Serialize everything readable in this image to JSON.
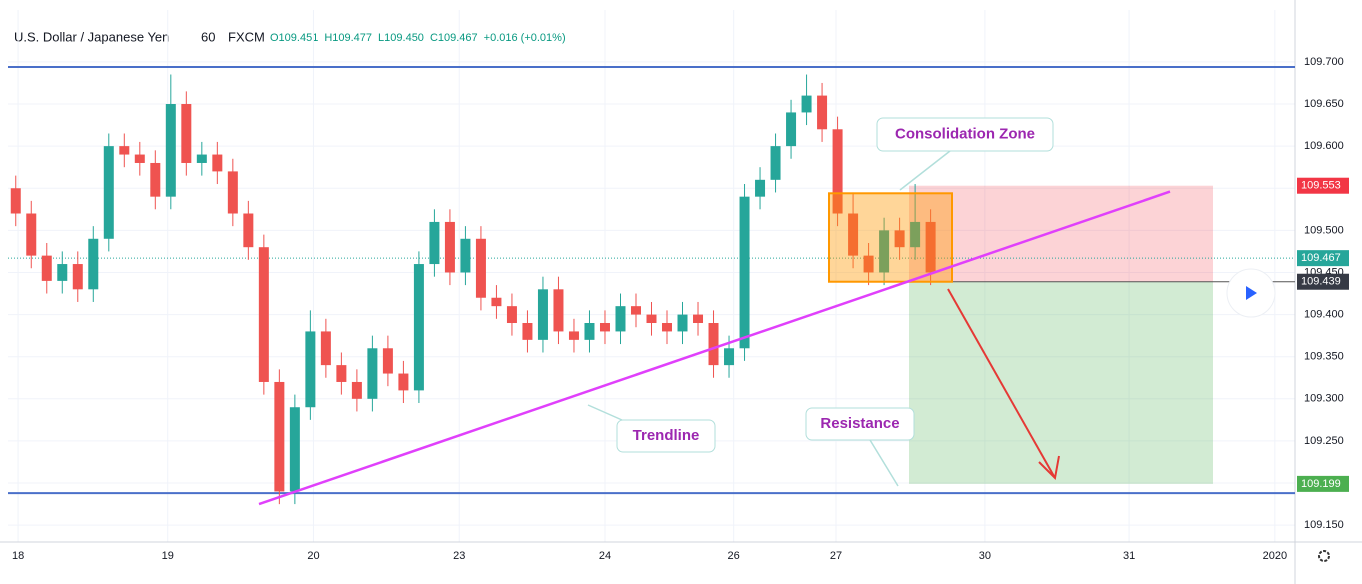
{
  "chart_data": {
    "type": "candlestick",
    "title": "U.S. Dollar / Japanese Yen",
    "interval": "60",
    "source": "FXCM",
    "legend_items": [
      "O109.451",
      "H109.477",
      "L109.450",
      "C109.467",
      "+0.016 (+0.01%)"
    ],
    "up_color": "#26a69a",
    "down_color": "#ef5350",
    "open": [
      109.55,
      109.52,
      109.47,
      109.44,
      109.46,
      109.43,
      109.49,
      109.6,
      109.59,
      109.58,
      109.54,
      109.65,
      109.58,
      109.59,
      109.57,
      109.52,
      109.48,
      109.32,
      109.19,
      109.29,
      109.38,
      109.34,
      109.32,
      109.3,
      109.36,
      109.33,
      109.31,
      109.46,
      109.51,
      109.45,
      109.49,
      109.42,
      109.41,
      109.39,
      109.37,
      109.43,
      109.38,
      109.37,
      109.39,
      109.38,
      109.41,
      109.4,
      109.39,
      109.38,
      109.4,
      109.39,
      109.34,
      109.36,
      109.54,
      109.56,
      109.6,
      109.64,
      109.66,
      109.62,
      109.52,
      109.47,
      109.45,
      109.5,
      109.48,
      109.51
    ],
    "high": [
      109.565,
      109.535,
      109.485,
      109.475,
      109.475,
      109.505,
      109.615,
      109.615,
      109.605,
      109.595,
      109.685,
      109.665,
      109.605,
      109.605,
      109.585,
      109.535,
      109.495,
      109.335,
      109.305,
      109.405,
      109.395,
      109.355,
      109.335,
      109.375,
      109.375,
      109.345,
      109.475,
      109.525,
      109.525,
      109.505,
      109.505,
      109.435,
      109.425,
      109.405,
      109.445,
      109.445,
      109.395,
      109.405,
      109.405,
      109.425,
      109.425,
      109.415,
      109.405,
      109.415,
      109.415,
      109.405,
      109.375,
      109.555,
      109.575,
      109.615,
      109.655,
      109.685,
      109.675,
      109.635,
      109.545,
      109.485,
      109.515,
      109.515,
      109.555,
      109.525
    ],
    "low": [
      109.505,
      109.455,
      109.425,
      109.425,
      109.415,
      109.415,
      109.475,
      109.575,
      109.565,
      109.525,
      109.525,
      109.565,
      109.565,
      109.555,
      109.505,
      109.465,
      109.305,
      109.175,
      109.175,
      109.275,
      109.325,
      109.305,
      109.285,
      109.285,
      109.315,
      109.295,
      109.295,
      109.445,
      109.435,
      109.435,
      109.405,
      109.395,
      109.375,
      109.355,
      109.355,
      109.365,
      109.355,
      109.355,
      109.365,
      109.365,
      109.385,
      109.375,
      109.365,
      109.365,
      109.375,
      109.325,
      109.325,
      109.345,
      109.525,
      109.545,
      109.585,
      109.625,
      109.605,
      109.505,
      109.455,
      109.435,
      109.435,
      109.465,
      109.465,
      109.435
    ],
    "close": [
      109.52,
      109.47,
      109.44,
      109.46,
      109.43,
      109.49,
      109.6,
      109.59,
      109.58,
      109.54,
      109.65,
      109.58,
      109.59,
      109.57,
      109.52,
      109.48,
      109.32,
      109.19,
      109.29,
      109.38,
      109.34,
      109.32,
      109.3,
      109.36,
      109.33,
      109.31,
      109.46,
      109.51,
      109.45,
      109.49,
      109.42,
      109.41,
      109.39,
      109.37,
      109.43,
      109.38,
      109.37,
      109.39,
      109.38,
      109.41,
      109.4,
      109.39,
      109.38,
      109.4,
      109.39,
      109.34,
      109.36,
      109.54,
      109.56,
      109.6,
      109.64,
      109.66,
      109.62,
      109.52,
      109.47,
      109.45,
      109.5,
      109.48,
      109.51,
      109.45
    ],
    "xlim": [
      -0.5,
      82.5
    ],
    "xticks": [
      {
        "value": 0.15,
        "label": "18"
      },
      {
        "value": 9.8,
        "label": "19"
      },
      {
        "value": 19.2,
        "label": "20"
      },
      {
        "value": 28.6,
        "label": "23"
      },
      {
        "value": 38.0,
        "label": "24"
      },
      {
        "value": 46.3,
        "label": "26"
      },
      {
        "value": 52.9,
        "label": "27"
      },
      {
        "value": 62.5,
        "label": "30"
      },
      {
        "value": 71.8,
        "label": "31"
      },
      {
        "value": 81.2,
        "label": "2020"
      }
    ],
    "ylim": [
      109.13,
      109.726
    ],
    "yticks": [
      {
        "value": 109.7,
        "label": "109.700"
      },
      {
        "value": 109.65,
        "label": "109.650"
      },
      {
        "value": 109.6,
        "label": "109.600"
      },
      {
        "value": 109.55,
        "label": "109.550"
      },
      {
        "value": 109.5,
        "label": "109.500"
      },
      {
        "value": 109.45,
        "label": "109.450"
      },
      {
        "value": 109.4,
        "label": "109.400"
      },
      {
        "value": 109.35,
        "label": "109.350"
      },
      {
        "value": 109.3,
        "label": "109.300"
      },
      {
        "value": 109.25,
        "label": "109.250"
      },
      {
        "value": 109.2,
        "label": "109.200"
      },
      {
        "value": 109.15,
        "label": "109.150"
      }
    ],
    "grid": true,
    "horizontal_lines": [
      109.694,
      109.188
    ],
    "current_price": 109.467,
    "price_labels": [
      {
        "value": 109.553,
        "label": "109.553",
        "color": "#f23645"
      },
      {
        "value": 109.467,
        "label": "109.467",
        "color": "#26a69a"
      },
      {
        "value": 109.439,
        "label": "109.439",
        "color": "#363a45"
      },
      {
        "value": 109.199,
        "label": "109.199",
        "color": "#4caf50"
      }
    ],
    "trendline": [
      109.175,
      109.546
    ],
    "stop_zone": [
      109.553,
      109.439
    ],
    "target_zone": [
      109.439,
      109.199
    ],
    "consolidation_box": [
      109.544,
      109.439
    ],
    "annotations": [
      "Consolidation Zone",
      "Trendline",
      "Resistance"
    ]
  }
}
